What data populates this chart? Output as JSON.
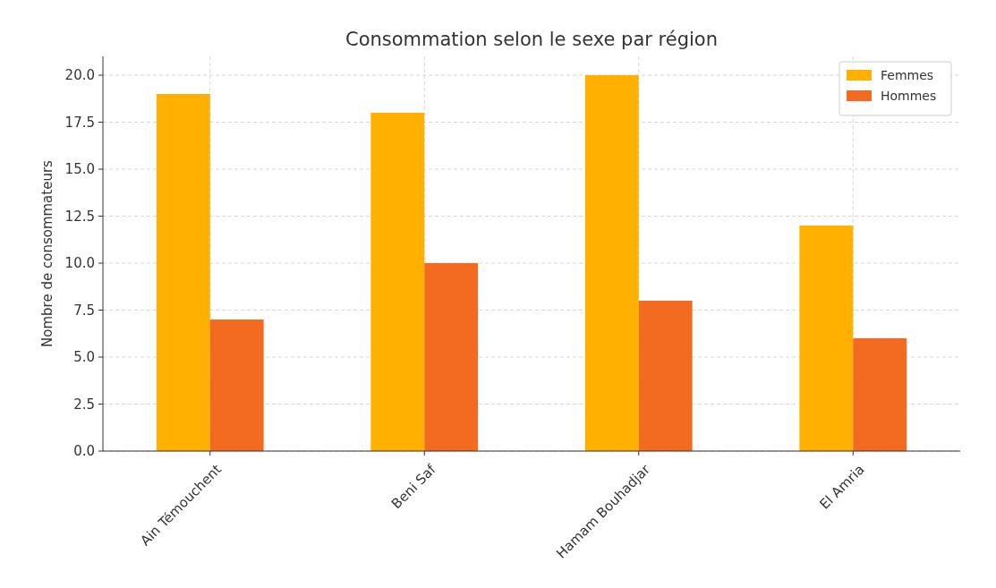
{
  "chart_data": {
    "type": "bar",
    "title": "Consommation selon le sexe par région",
    "ylabel": "Nombre de consommateurs",
    "categories": [
      "Ain Témouchent",
      "Beni Saf",
      "Hamam Bouhadjar",
      "El Amria"
    ],
    "series": [
      {
        "name": "Femmes",
        "color": "#ffb000",
        "values": [
          19,
          18,
          20,
          12
        ]
      },
      {
        "name": "Hommes",
        "color": "#f26b21",
        "values": [
          7,
          10,
          8,
          6
        ]
      }
    ],
    "ylim": [
      0,
      21
    ],
    "yticks": [
      {
        "value": 0,
        "label": "0.0"
      },
      {
        "value": 2.5,
        "label": "2.5"
      },
      {
        "value": 5,
        "label": "5.0"
      },
      {
        "value": 7.5,
        "label": "7.5"
      },
      {
        "value": 10,
        "label": "10.0"
      },
      {
        "value": 12.5,
        "label": "12.5"
      },
      {
        "value": 15,
        "label": "15.0"
      },
      {
        "value": 17.5,
        "label": "17.5"
      },
      {
        "value": 20,
        "label": "20.0"
      }
    ],
    "grid": true,
    "legend": "top right"
  }
}
